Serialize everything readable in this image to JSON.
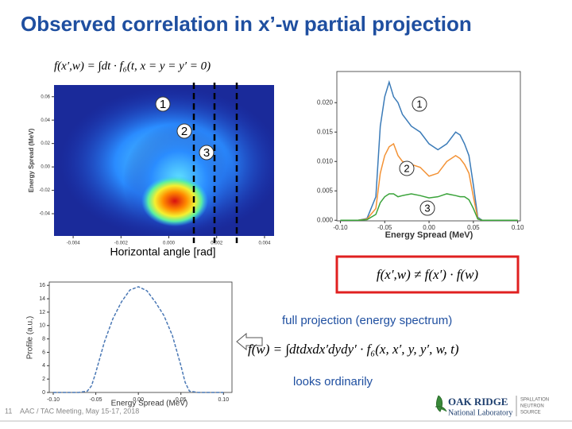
{
  "title": "Observed correlation in x’-w partial projection",
  "heatmap": {
    "formula": "f(x′,w) = ∫dt · f₆(t, x = y = y′ = 0)",
    "ylabel": "Energy Spread (MeV)",
    "xlabel": "Horizontal angle [rad]",
    "xlim": [
      -0.0048,
      0.0044
    ],
    "ylim": [
      -0.059,
      0.07
    ],
    "xticks": [
      -0.004,
      -0.002,
      {
        "value": 0,
        "label": "0.000"
      },
      0.002,
      0.004
    ],
    "yticks": [
      0.06,
      0.04,
      0.02,
      {
        "value": 0,
        "label": "0.00"
      },
      -0.02,
      -0.04
    ],
    "markers": [
      "1",
      "2",
      "3"
    ]
  },
  "spectrum": {
    "type": "line",
    "xlabel": "Energy Spread (MeV)",
    "xlim": [
      -0.104,
      0.103
    ],
    "ylim": [
      -0.0001,
      0.0253
    ],
    "xticks": [
      {
        "value": -0.1,
        "label": "-0.10"
      },
      -0.05,
      {
        "value": 0,
        "label": "0.00"
      },
      0.05,
      {
        "value": 0.1,
        "label": "0.10"
      }
    ],
    "yticks": [
      {
        "value": 0,
        "label": "0.000"
      },
      0.005,
      {
        "value": 0.01,
        "label": "0.010"
      },
      0.015,
      {
        "value": 0.02,
        "label": "0.020"
      }
    ],
    "x": [
      -0.1,
      -0.08,
      -0.07,
      -0.06,
      -0.055,
      -0.05,
      -0.045,
      -0.04,
      -0.035,
      -0.03,
      -0.02,
      -0.01,
      0,
      0.01,
      0.02,
      0.03,
      0.035,
      0.04,
      0.045,
      0.05,
      0.055,
      0.06,
      0.08,
      0.1
    ],
    "series": [
      {
        "color": "#3b7bb8",
        "values": [
          0,
          0,
          0.0003,
          0.004,
          0.016,
          0.021,
          0.0235,
          0.021,
          0.02,
          0.018,
          0.016,
          0.015,
          0.013,
          0.012,
          0.013,
          0.015,
          0.0145,
          0.013,
          0.011,
          0.006,
          0.0005,
          0,
          0,
          0
        ]
      },
      {
        "color": "#f39235",
        "values": [
          0,
          0,
          0.0002,
          0.002,
          0.008,
          0.011,
          0.0125,
          0.013,
          0.011,
          0.01,
          0.0095,
          0.009,
          0.0075,
          0.008,
          0.01,
          0.011,
          0.0105,
          0.0095,
          0.008,
          0.004,
          0.0003,
          0,
          0,
          0
        ]
      },
      {
        "color": "#3aa33a",
        "values": [
          0,
          0,
          0.0001,
          0.001,
          0.003,
          0.004,
          0.0045,
          0.0045,
          0.004,
          0.0042,
          0.0045,
          0.0042,
          0.0038,
          0.004,
          0.0045,
          0.0042,
          0.004,
          0.004,
          0.0035,
          0.002,
          0.0002,
          0,
          0,
          0
        ]
      }
    ],
    "markers": [
      "1",
      "2",
      "3"
    ]
  },
  "inequality": "f(x′,w) ≠ f(x′) · f(w)",
  "note1": "full projection (energy spectrum)",
  "formula2": "f(w) = ∫dtdxdx′dydy′ · f₆(x, x′, y, y′, w, t)",
  "note2": "looks ordinarily",
  "profile": {
    "type": "line",
    "xlabel": "Energy Spread (MeV)",
    "ylabel": "Profile (a.u.)",
    "xlim": [
      -0.1047,
      0.11
    ],
    "ylim": [
      0,
      16.5
    ],
    "xticks": [
      {
        "value": -0.1,
        "label": "-0.10"
      },
      -0.05,
      {
        "value": 0,
        "label": "0.00"
      },
      0.05,
      {
        "value": 0.1,
        "label": "0.10"
      }
    ],
    "yticks": [
      0,
      2,
      4,
      6,
      8,
      10,
      12,
      14,
      16
    ],
    "x": [
      -0.1,
      -0.07,
      -0.06,
      -0.055,
      -0.05,
      -0.04,
      -0.03,
      -0.02,
      -0.01,
      0,
      0.01,
      0.02,
      0.03,
      0.04,
      0.05,
      0.055,
      0.06,
      0.07,
      0.1
    ],
    "series": [
      {
        "color": "#4a78b5",
        "values": [
          0,
          0,
          0.2,
          1,
          3,
          7.5,
          11,
          13.5,
          15.3,
          15.8,
          15.2,
          13.5,
          11.5,
          8.5,
          4,
          1.5,
          0.2,
          0,
          0
        ]
      }
    ]
  },
  "footer": {
    "page": "11",
    "meeting": "AAC / TAC Meeting, May 15-17, 2018"
  },
  "logo": {
    "name1": "OAK RIDGE",
    "name2": "National Laboratory",
    "sns": [
      "SPALLATION",
      "NEUTRON",
      "SOURCE"
    ]
  }
}
